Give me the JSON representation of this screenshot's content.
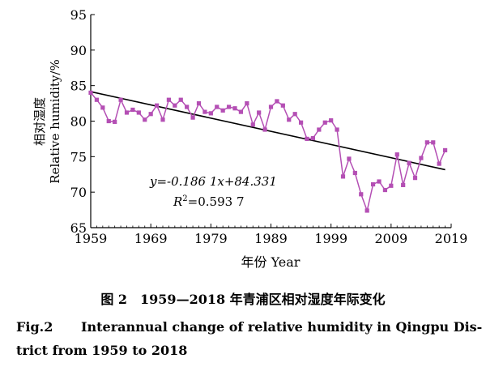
{
  "chart_data": {
    "type": "line",
    "x": [
      1959,
      1960,
      1961,
      1962,
      1963,
      1964,
      1965,
      1966,
      1967,
      1968,
      1969,
      1970,
      1971,
      1972,
      1973,
      1974,
      1975,
      1976,
      1977,
      1978,
      1979,
      1980,
      1981,
      1982,
      1983,
      1984,
      1985,
      1986,
      1987,
      1988,
      1989,
      1990,
      1991,
      1992,
      1993,
      1994,
      1995,
      1996,
      1997,
      1998,
      1999,
      2000,
      2001,
      2002,
      2003,
      2004,
      2005,
      2006,
      2007,
      2008,
      2009,
      2010,
      2011,
      2012,
      2013,
      2014,
      2015,
      2016,
      2017,
      2018
    ],
    "series": [
      {
        "values": [
          84.0,
          83.0,
          81.9,
          80.0,
          79.9,
          83.0,
          81.2,
          81.6,
          81.2,
          80.2,
          81.0,
          82.2,
          80.2,
          83.0,
          82.2,
          83.0,
          82.0,
          80.5,
          82.5,
          81.3,
          81.1,
          82.0,
          81.5,
          82.0,
          81.8,
          81.3,
          82.5,
          79.5,
          81.2,
          78.8,
          82.0,
          82.8,
          82.2,
          80.2,
          81.0,
          79.8,
          77.5,
          77.6,
          78.8,
          79.8,
          80.1,
          78.8,
          72.2,
          74.7,
          72.7,
          69.7,
          67.4,
          71.1,
          71.5,
          70.3,
          70.9,
          75.3,
          71.0,
          74.1,
          72.0,
          74.8,
          77.0,
          77.0,
          74.0,
          75.9
        ]
      }
    ],
    "trendline": {
      "slope": -0.1861,
      "intercept": 84.331,
      "r2": 0.5937
    },
    "equation_label": "y=-0.186 1x+84.331",
    "r2_label_prefix": "R",
    "r2_label_sup": "2",
    "r2_label_value": "=0.593 7",
    "xlim": [
      1959,
      2019
    ],
    "ylim": [
      65,
      95
    ],
    "xticks": [
      1959,
      1969,
      1979,
      1989,
      1999,
      2009,
      2019
    ],
    "yticks": [
      65,
      70,
      75,
      80,
      85,
      90,
      95
    ],
    "xtick_labels": [
      "1959",
      "1969",
      "1979",
      "1989",
      "1999",
      "2009",
      "2019"
    ],
    "ytick_labels": [
      "65",
      "70",
      "75",
      "80",
      "85",
      "90",
      "95"
    ],
    "xlabel": "年份 Year",
    "ylabel_cn": "相对湿度",
    "ylabel_en": "Relative humidity/%",
    "grid": false,
    "series_color": "#b44fb4",
    "trend_color": "#000000"
  },
  "caption": {
    "cn": "图 2　1959—2018 年青浦区相对湿度年际变化",
    "en_label": "Fig.2",
    "en_line1": "Interannual change of relative humidity in Qingpu Dis-",
    "en_line2": "trict from 1959 to 2018"
  }
}
